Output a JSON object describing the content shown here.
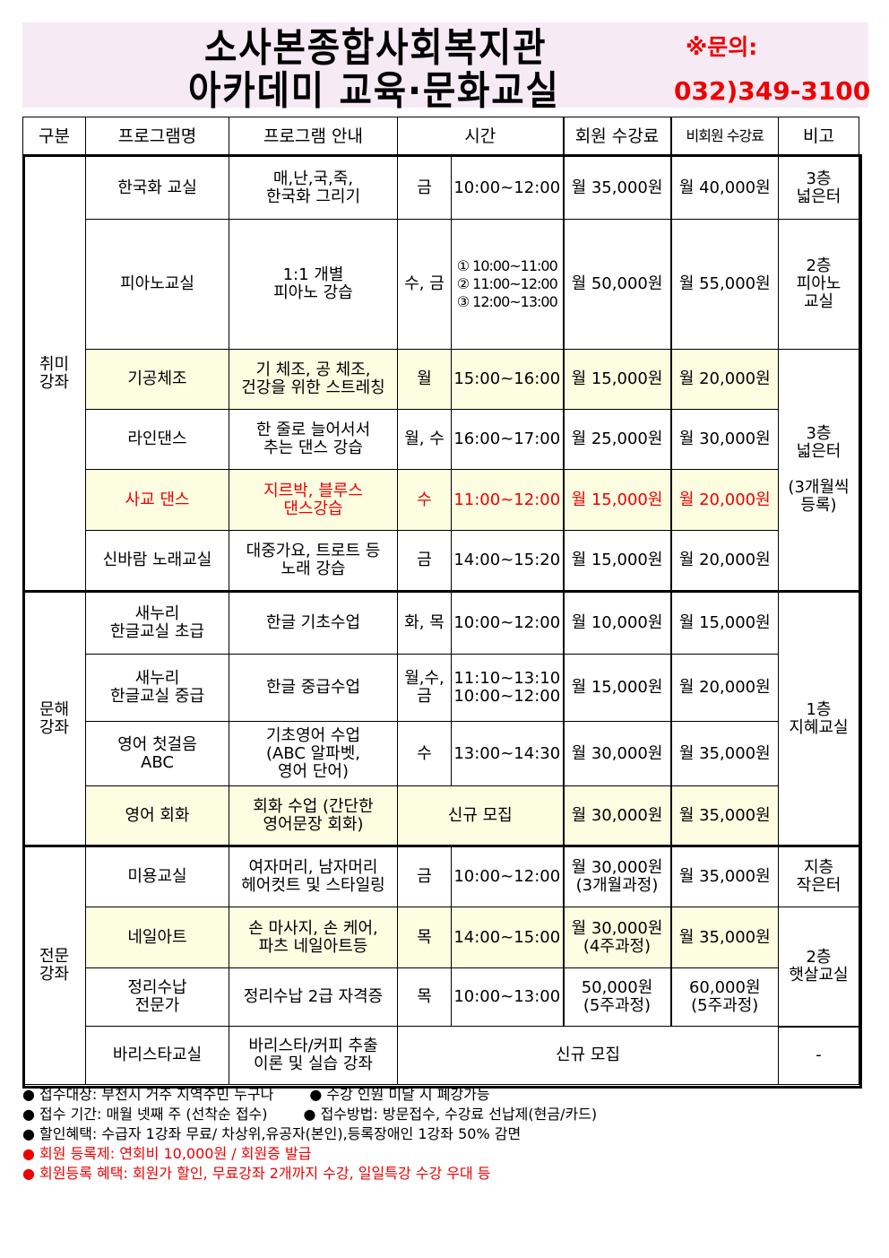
{
  "title": {
    "line1": "소사본종합사회복지관",
    "line2": "아카데미 교육·문화교실",
    "contact_label": "※문의:",
    "phone": "032)349-3100"
  },
  "headers": [
    "구분",
    "프로그램명",
    "프로그램 안내",
    "시간",
    "회원 수강료",
    "비회원 수강료",
    "비고"
  ],
  "categories": [
    "취미\n강좌",
    "문해\n강좌",
    "전문\n강좌"
  ],
  "notes_col": [
    "3층\n넓은터",
    "2층\n피아노\n교실",
    "3층\n넓은터\n\n(3개월씩\n등록)",
    "1층\n지혜교실",
    "지층\n작은터",
    "2층\n햇살교실",
    "-"
  ],
  "rows": [
    {
      "name": "한국화 교실",
      "desc": "매,난,국,죽,\n한국화 그리기",
      "day": "금",
      "time": "10:00~12:00",
      "member": "월 35,000원",
      "nonmember": "월 40,000원"
    },
    {
      "name": "피아노교실",
      "desc": "1:1 개별\n피아노 강습",
      "day": "수, 금",
      "time": "① 10:00~11:00\n② 11:00~12:00\n③ 12:00~13:00",
      "member": "월 50,000원",
      "nonmember": "월 55,000원"
    },
    {
      "name": "기공체조",
      "desc": "기 체조, 공 체조,\n건강을 위한 스트레칭",
      "day": "월",
      "time": "15:00~16:00",
      "member": "월 15,000원",
      "nonmember": "월 20,000원"
    },
    {
      "name": "라인댄스",
      "desc": "한 줄로 늘어서서\n추는 댄스 강습",
      "day": "월, 수",
      "time": "16:00~17:00",
      "member": "월 25,000원",
      "nonmember": "월 30,000원"
    },
    {
      "name": "사교 댄스",
      "desc": "지르박, 블루스\n댄스강습",
      "day": "수",
      "time": "11:00~12:00",
      "member": "월 15,000원",
      "nonmember": "월 20,000원"
    },
    {
      "name": "신바람 노래교실",
      "desc": "대중가요, 트로트 등\n노래 강습",
      "day": "금",
      "time": "14:00~15:20",
      "member": "월 15,000원",
      "nonmember": "월 20,000원"
    },
    {
      "name": "새누리\n한글교실 초급",
      "desc": "한글 기초수업",
      "day": "화, 목",
      "time": "10:00~12:00",
      "member": "월 10,000원",
      "nonmember": "월 15,000원"
    },
    {
      "name": "새누리\n한글교실 중급",
      "desc": "한글 중급수업",
      "day": "월,수,\n금",
      "time": "11:10~13:10\n10:00~12:00",
      "member": "월 15,000원",
      "nonmember": "월 20,000원"
    },
    {
      "name": "영어 첫걸음\nABC",
      "desc": "기초영어 수업\n(ABC 알파벳,\n영어 단어)",
      "day": "수",
      "time": "13:00~14:30",
      "member": "월 30,000원",
      "nonmember": "월 35,000원"
    },
    {
      "name": "영어 회화",
      "desc": "회화 수업 (간단한\n영어문장 회화)",
      "schedule": "신규 모집",
      "member": "월 30,000원",
      "nonmember": "월 35,000원"
    },
    {
      "name": "미용교실",
      "desc": "여자머리, 남자머리\n헤어컷트 및 스타일링",
      "day": "금",
      "time": "10:00~12:00",
      "member": "월 30,000원\n(3개월과정)",
      "nonmember": "월 35,000원"
    },
    {
      "name": "네일아트",
      "desc": "손 마사지, 손 케어,\n파츠 네일아트등",
      "day": "목",
      "time": "14:00~15:00",
      "member": "월 30,000원\n(4주과정)",
      "nonmember": "월 35,000원"
    },
    {
      "name": "정리수납\n전문가",
      "desc": "정리수납 2급 자격증",
      "day": "목",
      "time": "10:00~13:00",
      "member": "50,000원\n(5주과정)",
      "nonmember": "60,000원\n(5주과정)"
    },
    {
      "name": "바리스타교실",
      "desc": "바리스타/커피 추출\n이론 및 실습 강좌",
      "schedule": "신규 모집"
    }
  ],
  "notes": [
    "● 접수대상: 부천시 거주 지역주민 누구나",
    "● 수강 인원 미달 시 폐강가능",
    "● 접수 기간: 매월 넷째 주 (선착순 접수)",
    "● 접수방법: 방문접수, 수강료 선납제(현금/카드)",
    "● 할인혜택: 수급자 1강좌 무료/ 차상위,유공자(본인),등록장애인 1강좌 50% 감면",
    "● 회원 등록제: 연회비 10,000원 / 회원증 발급",
    "● 회원등록 혜택: 회원가 할인, 무료강좌 2개까지 수강, 일일특강 수강 우대 등"
  ],
  "colors": {
    "banner": "#f6eaf4",
    "highlight": "#fdfde2",
    "red": "#ee0000"
  }
}
